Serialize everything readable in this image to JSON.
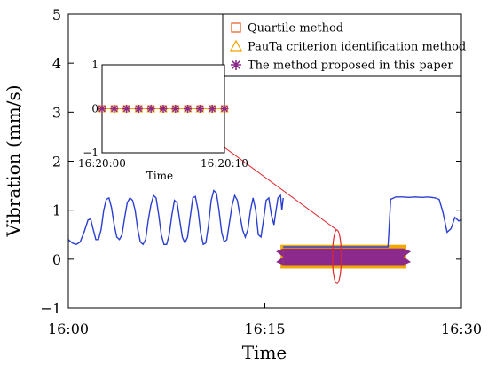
{
  "chart_data": {
    "type": "line",
    "xlabel": "Time",
    "ylabel": "Vibration (mm/s)",
    "xlim": [
      0,
      30
    ],
    "ylim": [
      -1,
      5
    ],
    "x_ticks": [
      {
        "value": 0,
        "label": "16:00"
      },
      {
        "value": 15,
        "label": "16:15"
      },
      {
        "value": 30,
        "label": "16:30"
      }
    ],
    "y_ticks": [
      {
        "value": -1,
        "label": "−1"
      },
      {
        "value": 0,
        "label": "0"
      },
      {
        "value": 1,
        "label": "1"
      },
      {
        "value": 2,
        "label": "2"
      },
      {
        "value": 3,
        "label": "3"
      },
      {
        "value": 4,
        "label": "4"
      },
      {
        "value": 5,
        "label": "5"
      }
    ],
    "grid": false,
    "legend_position": "top-right",
    "legend": [
      {
        "name": "Quartile method",
        "marker": "square",
        "color": "#e8622a"
      },
      {
        "name": "PauTa criterion identification method",
        "marker": "triangle",
        "color": "#f1a800"
      },
      {
        "name": "The method proposed in this paper",
        "marker": "asterisk",
        "color": "#8b2a8c"
      }
    ],
    "series": [
      {
        "color": "#2a3fd1",
        "x": [
          0.0,
          0.3,
          0.6,
          0.9,
          1.2,
          1.5,
          1.7,
          1.9,
          2.1,
          2.3,
          2.5,
          2.7,
          2.9,
          3.1,
          3.3,
          3.5,
          3.7,
          3.9,
          4.1,
          4.3,
          4.5,
          4.7,
          4.9,
          5.1,
          5.3,
          5.5,
          5.7,
          5.9,
          6.1,
          6.3,
          6.5,
          6.7,
          6.9,
          7.1,
          7.3,
          7.5,
          7.7,
          7.9,
          8.1,
          8.3,
          8.5,
          8.7,
          8.9,
          9.1,
          9.3,
          9.5,
          9.7,
          9.9,
          10.1,
          10.3,
          10.5,
          10.7,
          10.9,
          11.1,
          11.3,
          11.5,
          11.7,
          11.9,
          12.1,
          12.3,
          12.5,
          12.7,
          12.9,
          13.1,
          13.3,
          13.5,
          13.7,
          13.9,
          14.1,
          14.3,
          14.5,
          14.7,
          14.9,
          15.1,
          15.3,
          15.5,
          15.7,
          15.8,
          16.0,
          16.2,
          16.3,
          16.4
        ],
        "values": [
          0.4,
          0.33,
          0.3,
          0.35,
          0.55,
          0.8,
          0.82,
          0.6,
          0.4,
          0.4,
          0.6,
          1.0,
          1.22,
          1.25,
          1.05,
          0.7,
          0.45,
          0.4,
          0.5,
          0.85,
          1.15,
          1.25,
          1.2,
          1.0,
          0.6,
          0.35,
          0.3,
          0.4,
          0.8,
          1.1,
          1.3,
          1.25,
          0.9,
          0.5,
          0.3,
          0.3,
          0.5,
          0.9,
          1.2,
          1.15,
          0.8,
          0.45,
          0.33,
          0.45,
          0.85,
          1.25,
          1.28,
          1.0,
          0.55,
          0.3,
          0.33,
          0.7,
          1.2,
          1.4,
          1.35,
          1.0,
          0.55,
          0.35,
          0.4,
          0.75,
          1.1,
          1.3,
          1.2,
          0.9,
          0.6,
          0.45,
          0.6,
          1.0,
          1.25,
          1.0,
          0.5,
          0.45,
          0.8,
          1.2,
          1.25,
          0.9,
          0.7,
          0.9,
          1.25,
          1.3,
          1.0,
          1.25
        ]
      },
      {
        "color": "#2a3fd1",
        "x": [
          16.4,
          16.6,
          17.5,
          18.5,
          19.5,
          20.5,
          21.5,
          22.5,
          23.5,
          24.4,
          24.6,
          25.0,
          25.5,
          26.0,
          26.5,
          27.0,
          27.5,
          28.0,
          28.3,
          28.6,
          28.9,
          29.2,
          29.5,
          29.8,
          30.0
        ],
        "values": [
          0.25,
          0.25,
          0.25,
          0.25,
          0.25,
          0.25,
          0.25,
          0.25,
          0.25,
          0.25,
          1.22,
          1.27,
          1.27,
          1.26,
          1.27,
          1.26,
          1.27,
          1.25,
          1.22,
          0.95,
          0.55,
          0.62,
          0.85,
          0.78,
          0.8
        ]
      }
    ],
    "highlight_band": {
      "x_range": [
        16.4,
        25.6
      ],
      "y_range": [
        -0.12,
        0.22
      ],
      "color": "#8b2a8c"
    },
    "inset": {
      "ylim": [
        -1,
        1
      ],
      "y_ticks": [
        {
          "value": -1,
          "label": "−1"
        },
        {
          "value": 0,
          "label": "0"
        },
        {
          "value": 1,
          "label": "1"
        }
      ],
      "x_tick_labels": [
        "16:20:00",
        "16:20:10"
      ],
      "xlabel": "Time",
      "points_x": [
        0,
        1,
        2,
        3,
        4,
        5,
        6,
        7,
        8,
        9,
        10
      ],
      "points_y": [
        0,
        0,
        0,
        0,
        0,
        0,
        0,
        0,
        0,
        0,
        0
      ]
    }
  }
}
